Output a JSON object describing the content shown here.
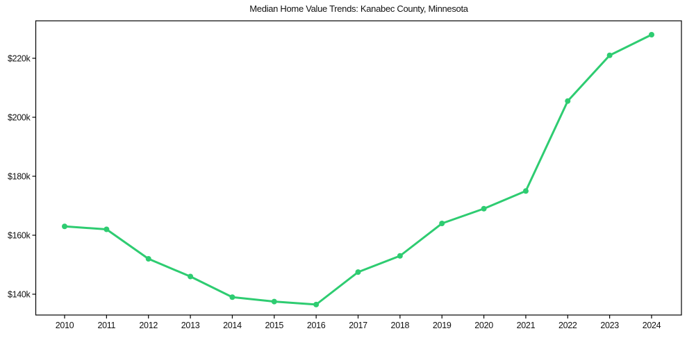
{
  "title": "Median Home Value Trends: Kanabec County, Minnesota",
  "colors": {
    "line": "#2ecc71",
    "marker": "#2ecc71",
    "axis": "#000000",
    "text": "#111111",
    "background": "#ffffff"
  },
  "chart_data": {
    "type": "line",
    "title": "Median Home Value Trends: Kanabec County, Minnesota",
    "xlabel": "",
    "ylabel": "",
    "x": [
      2010,
      2011,
      2012,
      2013,
      2014,
      2015,
      2016,
      2017,
      2018,
      2019,
      2020,
      2021,
      2022,
      2023,
      2024
    ],
    "series": [
      {
        "name": "Median Home Value",
        "values": [
          163000,
          162000,
          152000,
          146000,
          139000,
          137500,
          136500,
          147500,
          153000,
          164000,
          169000,
          175000,
          205500,
          221000,
          228000
        ]
      }
    ],
    "yticks": [
      140000,
      160000,
      180000,
      200000,
      220000
    ],
    "ytick_labels": [
      "$140k",
      "$160k",
      "$180k",
      "$200k",
      "$220k"
    ],
    "xtick_labels": [
      "2010",
      "2011",
      "2012",
      "2013",
      "2014",
      "2015",
      "2016",
      "2017",
      "2018",
      "2019",
      "2020",
      "2021",
      "2022",
      "2023",
      "2024"
    ],
    "ylim": [
      132900,
      232700
    ],
    "grid": false,
    "legend_position": "none",
    "marker": "circle"
  }
}
